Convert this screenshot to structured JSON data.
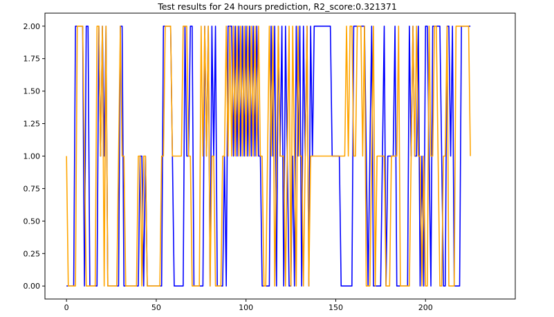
{
  "chart_data": {
    "type": "line",
    "title": "Test results for 24 hours prediction, R2_score:0.321371",
    "xlabel": "",
    "ylabel": "",
    "xlim": [
      -12,
      250
    ],
    "ylim": [
      -0.1,
      2.1
    ],
    "x_ticks": [
      0,
      50,
      100,
      150,
      200
    ],
    "x_tick_labels": [
      "0",
      "50",
      "100",
      "150",
      "200"
    ],
    "y_ticks": [
      0,
      0.25,
      0.5,
      0.75,
      1.0,
      1.25,
      1.5,
      1.75,
      2.0
    ],
    "y_tick_labels": [
      "0.00",
      "0.25",
      "0.50",
      "0.75",
      "1.00",
      "1.25",
      "1.50",
      "1.75",
      "2.00"
    ],
    "grid": false,
    "legend": "none",
    "series": [
      {
        "color": "#0000ff",
        "values": [
          0,
          0,
          0,
          0,
          0,
          2,
          2,
          2,
          2,
          2,
          0,
          2,
          2,
          0,
          0,
          0,
          0,
          0,
          2,
          1,
          2,
          1,
          2,
          0,
          0,
          0,
          0,
          0,
          0,
          0,
          2,
          2,
          0,
          0,
          0,
          0,
          0,
          0,
          0,
          0,
          0,
          1,
          1,
          0,
          1,
          0,
          0,
          0,
          0,
          0,
          0,
          0,
          0,
          0,
          2,
          2,
          2,
          2,
          2,
          1,
          0,
          0,
          0,
          0,
          0,
          0,
          2,
          1,
          1,
          2,
          2,
          0,
          0,
          0,
          0,
          0,
          0,
          2,
          1,
          2,
          0,
          2,
          1,
          2,
          0,
          0,
          0,
          0,
          1,
          0,
          2,
          2,
          2,
          1,
          2,
          1,
          2,
          1,
          2,
          1,
          2,
          1,
          2,
          1,
          2,
          1,
          2,
          1,
          1,
          0,
          0,
          0,
          0,
          0,
          2,
          1,
          2,
          0,
          2,
          1,
          2,
          0,
          2,
          1,
          0,
          0,
          1,
          0,
          2,
          1,
          2,
          0,
          2,
          1,
          2,
          0,
          2,
          1,
          2,
          2,
          2,
          2,
          2,
          2,
          2,
          2,
          2,
          2,
          1,
          1,
          1,
          1,
          1,
          0,
          0,
          0,
          0,
          0,
          0,
          0,
          2,
          2,
          2,
          2,
          2,
          2,
          2,
          1,
          0,
          1,
          2,
          0,
          0,
          0,
          0,
          0,
          1,
          2,
          0,
          1,
          1,
          1,
          1,
          2,
          0,
          0,
          0,
          0,
          0,
          0,
          0,
          2,
          1,
          2,
          1,
          1,
          2,
          0,
          1,
          0,
          2,
          2,
          1,
          0,
          2,
          2,
          2,
          2,
          2,
          1,
          0,
          0,
          2,
          2,
          1,
          2,
          0,
          0,
          0,
          0,
          2,
          2,
          2,
          2,
          2,
          2
        ]
      },
      {
        "color": "#ffa500",
        "values": [
          1,
          0,
          0,
          0,
          0,
          0,
          2,
          2,
          2,
          2,
          1,
          0,
          0,
          0,
          0,
          0,
          0,
          2,
          2,
          1,
          2,
          0,
          2,
          0,
          0,
          0,
          0,
          0,
          0,
          1,
          2,
          1,
          1,
          0,
          0,
          0,
          0,
          0,
          0,
          0,
          1,
          1,
          0,
          1,
          1,
          0,
          0,
          0,
          0,
          0,
          0,
          0,
          0,
          1,
          1,
          2,
          2,
          2,
          2,
          1,
          1,
          1,
          1,
          1,
          1,
          2,
          2,
          2,
          1,
          1,
          0,
          0,
          0,
          0,
          0,
          2,
          1,
          2,
          1,
          2,
          0,
          1,
          1,
          0,
          0,
          0,
          0,
          1,
          1,
          2,
          1,
          2,
          1,
          2,
          1,
          2,
          1,
          2,
          1,
          2,
          1,
          2,
          1,
          2,
          1,
          2,
          1,
          2,
          1,
          1,
          0,
          0,
          1,
          2,
          1,
          2,
          0,
          1,
          2,
          1,
          1,
          1,
          0,
          1,
          2,
          0,
          2,
          1,
          0,
          2,
          1,
          1,
          0,
          1,
          2,
          0,
          1,
          1,
          1,
          1,
          1,
          1,
          1,
          1,
          1,
          1,
          1,
          1,
          1,
          1,
          1,
          1,
          1,
          1,
          1,
          1,
          2,
          1,
          2,
          2,
          1,
          1,
          2,
          2,
          2,
          1,
          2,
          0,
          0,
          0,
          1,
          2,
          0,
          1,
          1,
          1,
          1,
          1,
          0,
          0,
          0,
          1,
          1,
          1,
          1,
          2,
          0,
          0,
          0,
          0,
          0,
          0,
          1,
          2,
          1,
          2,
          1,
          1,
          0,
          1,
          0,
          0,
          2,
          1,
          1,
          2,
          2,
          1,
          0,
          0,
          1,
          1,
          2,
          0,
          0,
          0,
          0,
          2,
          2,
          2,
          2,
          2,
          2,
          2,
          2,
          1
        ]
      }
    ]
  }
}
